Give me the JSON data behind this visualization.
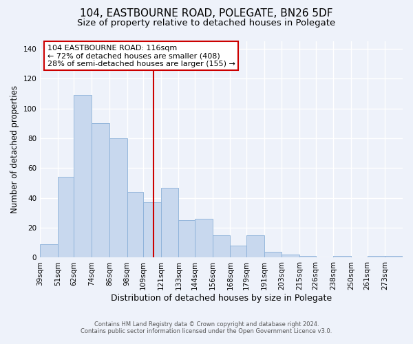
{
  "title": "104, EASTBOURNE ROAD, POLEGATE, BN26 5DF",
  "subtitle": "Size of property relative to detached houses in Polegate",
  "xlabel": "Distribution of detached houses by size in Polegate",
  "ylabel": "Number of detached properties",
  "bar_labels": [
    "39sqm",
    "51sqm",
    "62sqm",
    "74sqm",
    "86sqm",
    "98sqm",
    "109sqm",
    "121sqm",
    "133sqm",
    "144sqm",
    "156sqm",
    "168sqm",
    "179sqm",
    "191sqm",
    "203sqm",
    "215sqm",
    "226sqm",
    "238sqm",
    "250sqm",
    "261sqm",
    "273sqm"
  ],
  "bar_values": [
    9,
    54,
    109,
    90,
    80,
    44,
    37,
    47,
    25,
    26,
    15,
    8,
    15,
    4,
    2,
    1,
    0,
    1,
    0,
    1,
    1
  ],
  "bar_color": "#c8d8ee",
  "bar_edge_color": "#8ab0d8",
  "ylim": [
    0,
    145
  ],
  "yticks": [
    0,
    20,
    40,
    60,
    80,
    100,
    120,
    140
  ],
  "vline_x": 116,
  "vline_color": "#cc0000",
  "annotation_title": "104 EASTBOURNE ROAD: 116sqm",
  "annotation_line1": "← 72% of detached houses are smaller (408)",
  "annotation_line2": "28% of semi-detached houses are larger (155) →",
  "annotation_box_color": "#cc0000",
  "footer1": "Contains HM Land Registry data © Crown copyright and database right 2024.",
  "footer2": "Contains public sector information licensed under the Open Government Licence v3.0.",
  "background_color": "#eef2fa",
  "grid_color": "#ffffff",
  "title_fontsize": 11,
  "subtitle_fontsize": 9.5,
  "axis_label_fontsize": 8.5,
  "tick_fontsize": 7.5,
  "footer_fontsize": 6.0
}
